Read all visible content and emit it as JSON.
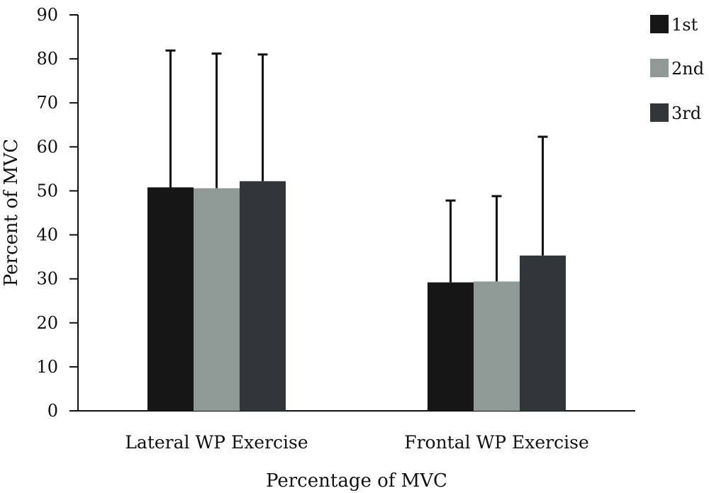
{
  "chart_data": {
    "type": "bar",
    "title": "",
    "xlabel": "Percentage of MVC",
    "ylabel": "Percent of MVC",
    "ylim": [
      0,
      90
    ],
    "yticks": [
      0,
      10,
      20,
      30,
      40,
      50,
      60,
      70,
      80,
      90
    ],
    "categories": [
      "Lateral WP Exercise",
      "Frontal WP Exercise"
    ],
    "series": [
      {
        "name": "1st",
        "color": "#161616",
        "values": [
          50.8,
          29.2
        ],
        "error_upper": [
          81.9,
          47.8
        ]
      },
      {
        "name": "2nd",
        "color": "#8f9a96",
        "values": [
          50.6,
          29.4
        ],
        "error_upper": [
          81.2,
          48.8
        ]
      },
      {
        "name": "3rd",
        "color": "#323638",
        "values": [
          52.2,
          35.3
        ],
        "error_upper": [
          81.0,
          62.3
        ]
      }
    ],
    "error_bars": "upper",
    "grid": false,
    "legend": "top-right"
  }
}
